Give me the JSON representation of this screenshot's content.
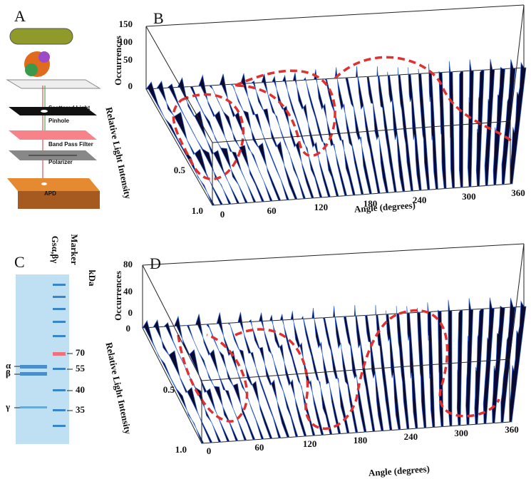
{
  "panels": [
    {
      "label": "A",
      "texts": [
        "Scattered Light",
        "Pinhole",
        "Band Pass Filter",
        "Polarizer",
        "APD"
      ]
    },
    {
      "label": "B",
      "z_axis": "Occurrences",
      "z_ticks": [
        "150",
        "100",
        "50",
        "0"
      ],
      "y_axis": "Relative Light Intensity",
      "y_ticks": [
        "0.5",
        "1.0"
      ],
      "x_axis": "Angle (degrees)",
      "x_ticks": [
        "0",
        "60",
        "120",
        "180",
        "240",
        "300",
        "360"
      ]
    },
    {
      "label": "C",
      "lanes": [
        "Gsα,βγ",
        "Marker"
      ],
      "unit": "kDa",
      "bands": [
        "α",
        "β",
        "γ"
      ],
      "markers": [
        "70",
        "55",
        "40",
        "35"
      ]
    },
    {
      "label": "D",
      "z_axis": "Occurrences",
      "z_ticks": [
        "80",
        "40",
        "0"
      ],
      "y_axis": "Relative Light Intensity",
      "y_ticks": [
        "0",
        "0.5",
        "1.0"
      ],
      "x_axis": "Angle (degrees)",
      "x_ticks": [
        "0",
        "60",
        "120",
        "180",
        "240",
        "300",
        "360"
      ]
    }
  ]
}
